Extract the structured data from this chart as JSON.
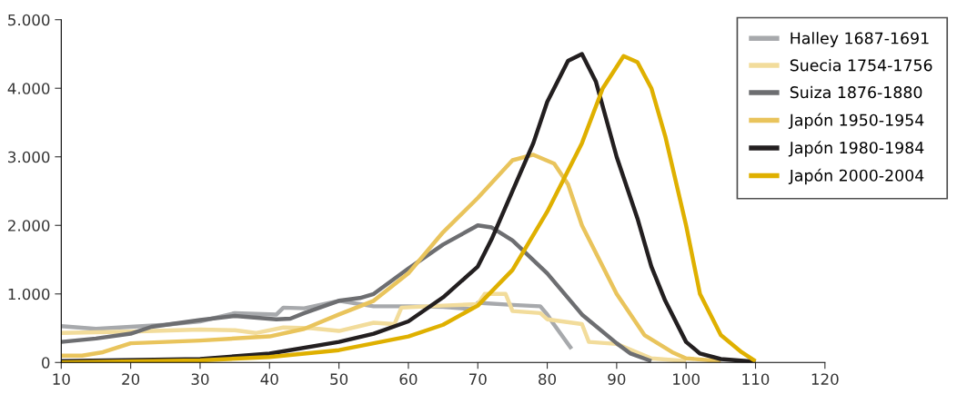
{
  "chart_data": {
    "type": "line",
    "xlim": [
      10,
      120
    ],
    "xticks": [
      10,
      20,
      30,
      40,
      50,
      60,
      70,
      80,
      90,
      100,
      110,
      120
    ],
    "ylim": [
      0,
      5000
    ],
    "yticks": [
      {
        "value": 0,
        "label": "0"
      },
      {
        "value": 1000,
        "label": "1.000"
      },
      {
        "value": 2000,
        "label": "2.000"
      },
      {
        "value": 3000,
        "label": "3.000"
      },
      {
        "value": 4000,
        "label": "4.000"
      },
      {
        "value": 5000,
        "label": "5.000"
      }
    ],
    "grid": false,
    "legend": "top right",
    "marker": "none",
    "line_style": "solid",
    "series": [
      {
        "name": "Halley 1687-1691",
        "color": "#a7a9ac",
        "x": [
          10,
          15,
          20,
          25,
          30,
          35,
          41,
          42,
          45,
          50,
          55,
          60,
          65,
          69,
          70,
          75,
          79,
          80,
          81,
          83.5
        ],
        "values": [
          530,
          490,
          520,
          550,
          600,
          720,
          700,
          800,
          790,
          900,
          820,
          820,
          810,
          780,
          870,
          840,
          820,
          700,
          550,
          200
        ]
      },
      {
        "name": "Suecia 1754-1756",
        "color": "#f2dc9b",
        "x": [
          10,
          20,
          30,
          35,
          38,
          42,
          46,
          50,
          55,
          58,
          59,
          65,
          70,
          71,
          74,
          75,
          79,
          80,
          85,
          86,
          90,
          95,
          100
        ],
        "values": [
          430,
          450,
          480,
          470,
          430,
          510,
          500,
          460,
          580,
          560,
          800,
          830,
          850,
          1000,
          1000,
          750,
          720,
          630,
          560,
          300,
          270,
          60,
          20
        ]
      },
      {
        "name": "Suiza 1876-1880",
        "color": "#6d6e71",
        "x": [
          10,
          15,
          20,
          23,
          30,
          35,
          41,
          43,
          45,
          50,
          53,
          55,
          60,
          65,
          70,
          72,
          75,
          80,
          85,
          90,
          92,
          95
        ],
        "values": [
          300,
          350,
          420,
          520,
          620,
          680,
          630,
          640,
          720,
          900,
          940,
          1000,
          1370,
          1720,
          2000,
          1970,
          1780,
          1300,
          700,
          280,
          130,
          20
        ]
      },
      {
        "name": "Japón 1950-1954",
        "color": "#e9c45c",
        "x": [
          10,
          13,
          16,
          20,
          30,
          40,
          45,
          50,
          55,
          60,
          65,
          70,
          75,
          78,
          81,
          83,
          85,
          90,
          94,
          98,
          100,
          105
        ],
        "values": [
          100,
          100,
          150,
          280,
          320,
          380,
          490,
          700,
          900,
          1300,
          1900,
          2400,
          2950,
          3030,
          2900,
          2600,
          2000,
          1000,
          400,
          150,
          60,
          20
        ]
      },
      {
        "name": "Japón 1980-1984",
        "color": "#231f20",
        "x": [
          10,
          30,
          40,
          50,
          55,
          60,
          65,
          70,
          72,
          75,
          78,
          80,
          83,
          85,
          87,
          90,
          93,
          95,
          97,
          100,
          102,
          105,
          110
        ],
        "values": [
          20,
          50,
          130,
          300,
          420,
          600,
          950,
          1400,
          1800,
          2500,
          3200,
          3800,
          4400,
          4500,
          4100,
          3000,
          2100,
          1400,
          900,
          300,
          130,
          50,
          10
        ]
      },
      {
        "name": "Japón 2000-2004",
        "color": "#dfb000",
        "x": [
          10,
          30,
          40,
          50,
          60,
          65,
          70,
          75,
          80,
          85,
          88,
          91,
          93,
          95,
          97,
          100,
          102,
          105,
          108,
          110
        ],
        "values": [
          0,
          30,
          80,
          180,
          380,
          550,
          830,
          1350,
          2200,
          3200,
          4000,
          4470,
          4380,
          4000,
          3300,
          2000,
          1000,
          400,
          150,
          20
        ]
      }
    ]
  }
}
